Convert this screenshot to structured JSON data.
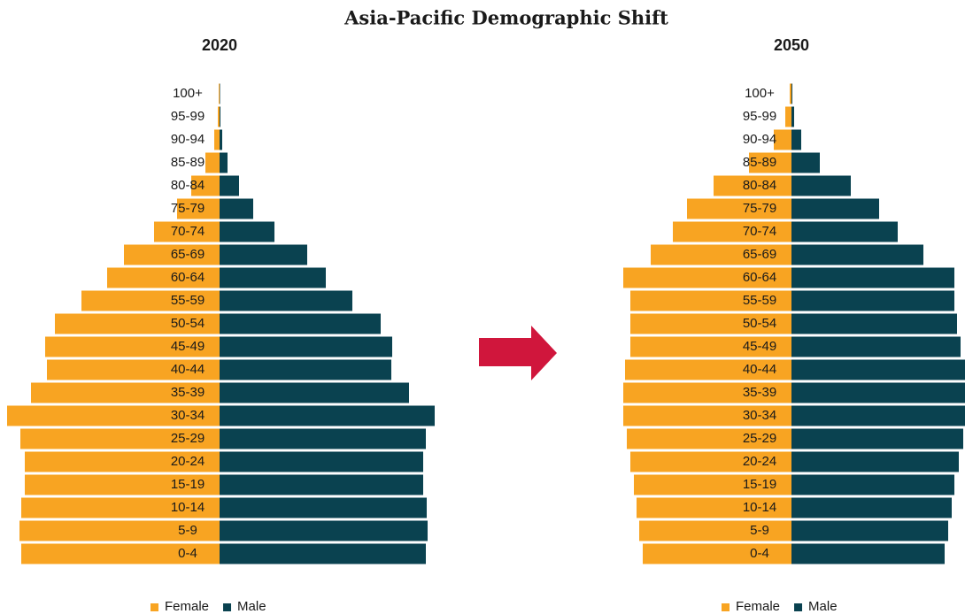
{
  "title": "Asia-Pacific Demographic Shift",
  "chart_data": [
    {
      "type": "pyramid",
      "title": "2020",
      "categories": [
        "0-4",
        "5-9",
        "10-14",
        "15-19",
        "20-24",
        "25-29",
        "30-34",
        "35-39",
        "40-44",
        "45-49",
        "50-54",
        "55-59",
        "60-64",
        "65-69",
        "70-74",
        "75-79",
        "80-84",
        "85-89",
        "90-94",
        "95-99",
        "100+"
      ],
      "series": [
        {
          "name": "Female",
          "color": "#f8a422",
          "values": [
            224,
            226,
            224,
            220,
            220,
            225,
            240,
            213,
            195,
            197,
            186,
            156,
            127,
            108,
            74,
            48,
            32,
            16,
            6,
            2,
            1
          ]
        },
        {
          "name": "Male",
          "color": "#0a4250",
          "values": [
            233,
            235,
            234,
            230,
            230,
            233,
            243,
            214,
            194,
            195,
            182,
            150,
            120,
            99,
            62,
            38,
            22,
            9,
            3,
            1,
            0.5
          ]
        }
      ]
    },
    {
      "type": "pyramid",
      "title": "2050",
      "categories": [
        "0-4",
        "5-9",
        "10-14",
        "15-19",
        "20-24",
        "25-29",
        "30-34",
        "35-39",
        "40-44",
        "45-49",
        "50-54",
        "55-59",
        "60-64",
        "65-69",
        "70-74",
        "75-79",
        "80-84",
        "85-89",
        "90-94",
        "95-99",
        "100+"
      ],
      "series": [
        {
          "name": "Female",
          "color": "#f8a422",
          "values": [
            168,
            172,
            175,
            178,
            182,
            186,
            190,
            190,
            188,
            182,
            182,
            182,
            190,
            159,
            134,
            118,
            88,
            48,
            20,
            7,
            2
          ]
        },
        {
          "name": "Male",
          "color": "#0a4250",
          "values": [
            173,
            177,
            181,
            184,
            189,
            194,
            196,
            196,
            196,
            191,
            187,
            184,
            184,
            149,
            120,
            99,
            67,
            32,
            11,
            3,
            1
          ]
        }
      ]
    }
  ]
}
